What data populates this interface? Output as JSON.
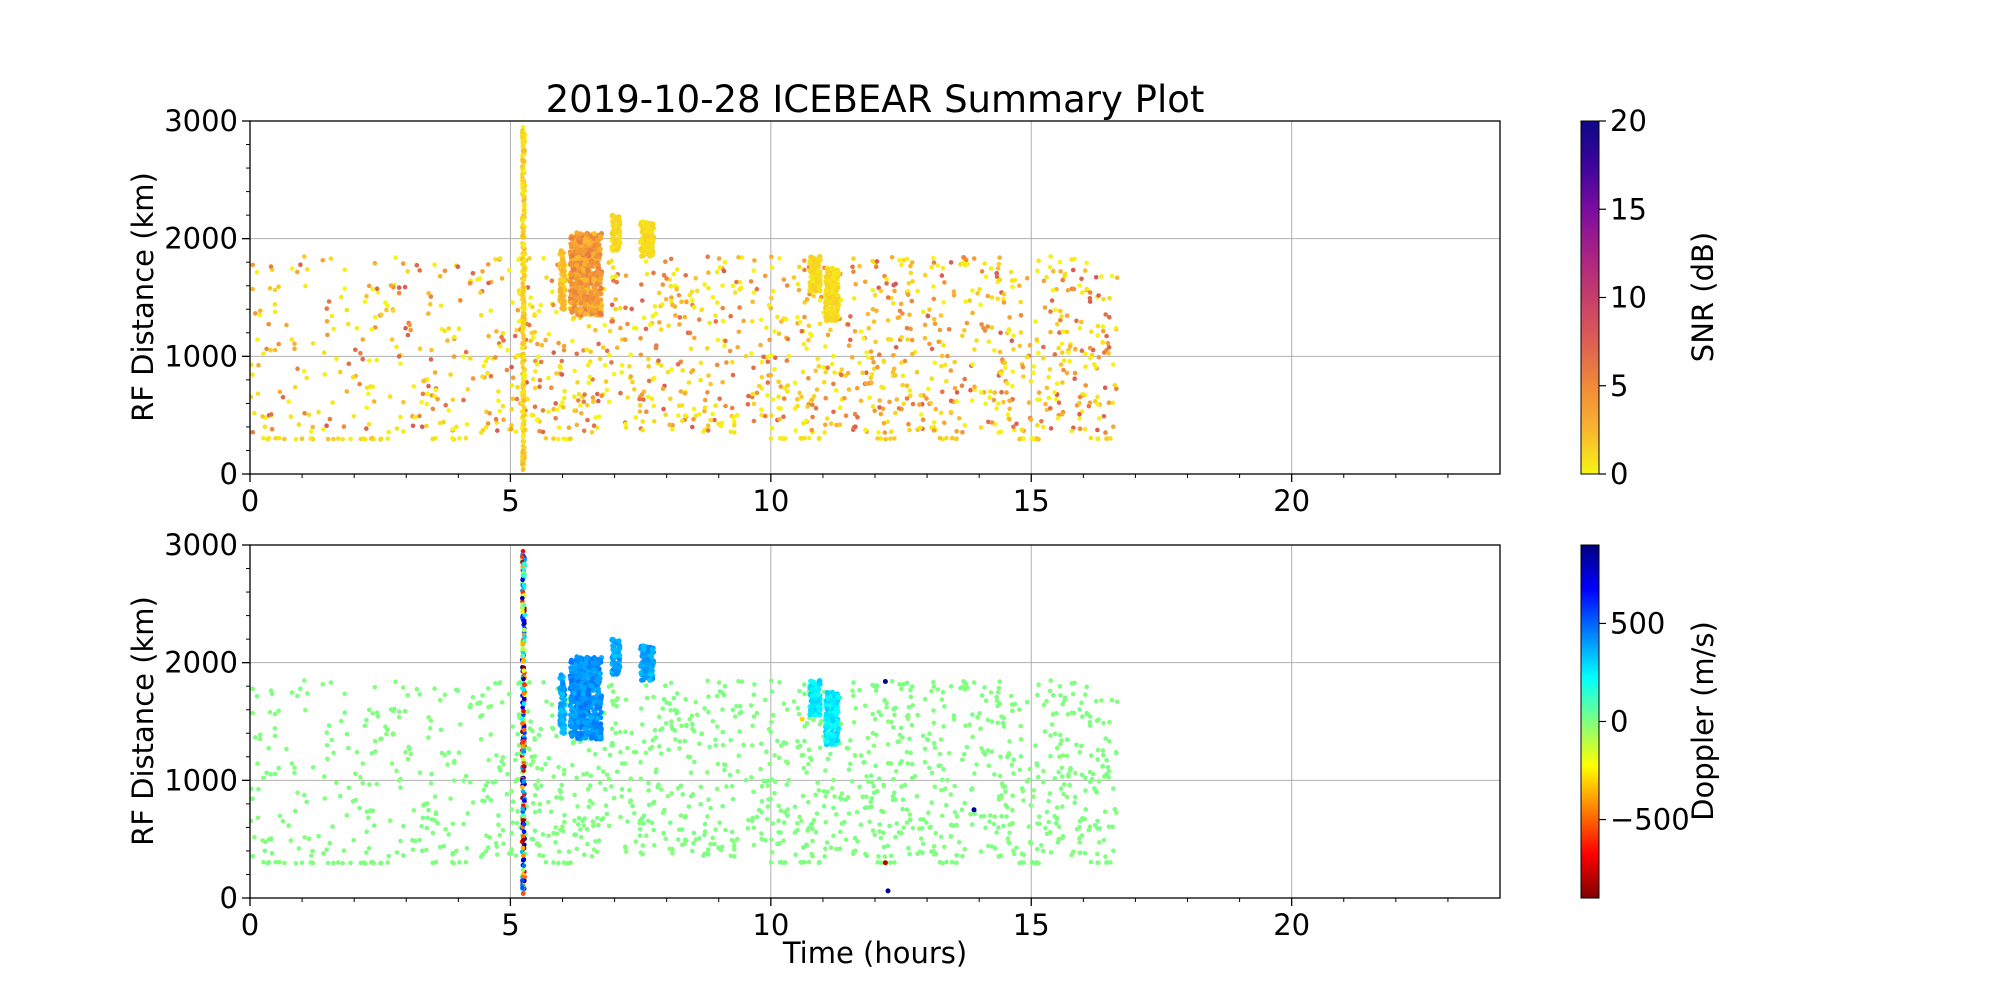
{
  "figure": {
    "title": "2019-10-28 ICEBEAR Summary Plot",
    "xlabel": "Time (hours)"
  },
  "colors": {
    "axis": "#000000",
    "grid": "#b0b0b0",
    "snr_cmap": [
      "#f6f514",
      "#f9b52f",
      "#f08a3a",
      "#dc5f53",
      "#c63e6b",
      "#a82285",
      "#7c0ca0",
      "#3d049a",
      "#0d0887"
    ],
    "doppler_cmap": [
      "#800000",
      "#ff0000",
      "#ff8000",
      "#ffff00",
      "#80ff80",
      "#00ffff",
      "#0080ff",
      "#0000ff",
      "#000080"
    ]
  },
  "chart_data": [
    {
      "type": "scatter",
      "panel": "snr",
      "title": "2019-10-28 ICEBEAR Summary Plot",
      "xlabel": "",
      "ylabel": "RF Distance (km)",
      "xlim": [
        0,
        24
      ],
      "ylim": [
        0,
        3000
      ],
      "xticks": [
        0,
        5,
        10,
        15,
        20
      ],
      "yticks": [
        0,
        1000,
        2000,
        3000
      ],
      "grid": true,
      "colorbar": {
        "label": "SNR (dB)",
        "range": [
          0,
          20
        ],
        "ticks": [
          0,
          5,
          10,
          15,
          20
        ]
      },
      "features": {
        "vertical_streak": {
          "time": 5.25,
          "range": [
            30,
            2950
          ],
          "value": 1
        },
        "bursts": [
          {
            "time": [
              5.95,
              6.05
            ],
            "range": [
              1400,
              1900
            ],
            "value": 2
          },
          {
            "time": [
              6.15,
              6.75
            ],
            "range": [
              1350,
              2050
            ],
            "value": 4
          },
          {
            "time": [
              6.95,
              7.1
            ],
            "range": [
              1900,
              2200
            ],
            "value": 1
          },
          {
            "time": [
              7.5,
              7.75
            ],
            "range": [
              1850,
              2150
            ],
            "value": 1
          },
          {
            "time": [
              10.75,
              10.95
            ],
            "range": [
              1550,
              1850
            ],
            "value": 1
          },
          {
            "time": [
              11.05,
              11.3
            ],
            "range": [
              1300,
              1750
            ],
            "value": 1
          }
        ],
        "baseline_row": {
          "range": 300,
          "segments": [
            [
              0.2,
              2.7
            ],
            [
              3.5,
              4.2
            ],
            [
              5.5,
              6.2
            ],
            [
              10.0,
              11.2
            ],
            [
              12.0,
              12.5
            ],
            [
              13.2,
              13.8
            ],
            [
              14.6,
              15.5
            ],
            [
              16.0,
              16.6
            ]
          ],
          "value": 1
        },
        "background": {
          "time": [
            0,
            16.65
          ],
          "range": [
            350,
            1850
          ],
          "value_range": [
            0,
            8
          ]
        }
      }
    },
    {
      "type": "scatter",
      "panel": "doppler",
      "xlabel": "Time (hours)",
      "ylabel": "RF Distance (km)",
      "xlim": [
        0,
        24
      ],
      "ylim": [
        0,
        3000
      ],
      "xticks": [
        0,
        5,
        10,
        15,
        20
      ],
      "yticks": [
        0,
        1000,
        2000,
        3000
      ],
      "grid": true,
      "colorbar": {
        "label": "Doppler (m/s)",
        "range": [
          -900,
          900
        ],
        "ticks": [
          -500,
          0,
          500
        ]
      },
      "features": {
        "vertical_streak": {
          "time": 5.25,
          "range": [
            30,
            2950
          ],
          "value": "mixed"
        },
        "bursts": [
          {
            "time": [
              5.95,
              6.05
            ],
            "range": [
              1400,
              1900
            ],
            "value": 380
          },
          {
            "time": [
              6.15,
              6.75
            ],
            "range": [
              1350,
              2050
            ],
            "value": 420
          },
          {
            "time": [
              6.95,
              7.1
            ],
            "range": [
              1900,
              2200
            ],
            "value": 380
          },
          {
            "time": [
              7.5,
              7.75
            ],
            "range": [
              1850,
              2150
            ],
            "value": 380
          },
          {
            "time": [
              10.75,
              10.95
            ],
            "range": [
              1550,
              1850
            ],
            "value": 250
          },
          {
            "time": [
              11.05,
              11.3
            ],
            "range": [
              1300,
              1750
            ],
            "value": 250
          }
        ],
        "baseline_row": {
          "range": 300,
          "segments": [
            [
              0.2,
              2.7
            ],
            [
              3.5,
              4.2
            ],
            [
              5.5,
              6.2
            ],
            [
              10.0,
              11.2
            ],
            [
              12.0,
              12.5
            ],
            [
              13.2,
              13.8
            ],
            [
              14.6,
              15.5
            ],
            [
              16.0,
              16.6
            ]
          ],
          "value": 0
        },
        "background": {
          "time": [
            0,
            16.65
          ],
          "range": [
            350,
            1850
          ],
          "value": 0
        },
        "outliers": [
          {
            "time": 12.2,
            "range": 1840,
            "value": 850
          },
          {
            "time": 12.2,
            "range": 300,
            "value": -800
          },
          {
            "time": 12.25,
            "range": 60,
            "value": 850
          },
          {
            "time": 13.9,
            "range": 750,
            "value": 850
          },
          {
            "time": 10.6,
            "range": 1520,
            "value": -300
          }
        ]
      }
    }
  ]
}
